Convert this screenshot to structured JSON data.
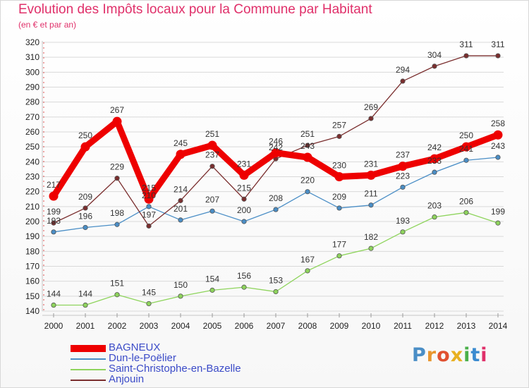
{
  "header": {
    "title": "Evolution des Impôts locaux pour la Commune par Habitant",
    "subtitle": "(en € et par an)"
  },
  "logo_text": "Proxiti",
  "chart_data": {
    "type": "line",
    "title": "Evolution des Impôts locaux pour la Commune par Habitant",
    "subtitle": "(en € et par an)",
    "xlabel": "",
    "ylabel": "",
    "x": [
      2000,
      2001,
      2002,
      2003,
      2004,
      2005,
      2006,
      2007,
      2008,
      2009,
      2010,
      2011,
      2012,
      2013,
      2014
    ],
    "ylim": [
      140,
      320
    ],
    "yticks": [
      140,
      150,
      160,
      170,
      180,
      190,
      200,
      210,
      220,
      230,
      240,
      250,
      260,
      270,
      280,
      290,
      300,
      310,
      320
    ],
    "grid": "horizontal",
    "legend_position": "bottom-left",
    "series": [
      {
        "name": "BAGNEUX",
        "color": "#ee0000",
        "values": [
          217,
          250,
          267,
          215,
          245,
          251,
          231,
          246,
          243,
          230,
          231,
          237,
          242,
          250,
          258
        ],
        "labels": [
          "217",
          "250",
          "267",
          "215",
          "245",
          "251",
          "231",
          "246",
          "243",
          "230",
          "231",
          "237",
          "242",
          "250",
          "258"
        ]
      },
      {
        "name": "Dun-le-Poëlier",
        "color": "#4a8ec6",
        "values": [
          193,
          196,
          198,
          210,
          201,
          207,
          200,
          208,
          220,
          209,
          211,
          223,
          233,
          241,
          243
        ],
        "labels": [
          "193",
          "196",
          "198",
          "210",
          "201",
          "207",
          "200",
          "208",
          "220",
          "209",
          "211",
          "223",
          "233",
          "241",
          "243"
        ]
      },
      {
        "name": "Saint-Christophe-en-Bazelle",
        "color": "#8ed45c",
        "values": [
          144,
          144,
          151,
          145,
          150,
          154,
          156,
          153,
          167,
          177,
          182,
          193,
          203,
          206,
          199
        ],
        "labels": [
          "144",
          "144",
          "151",
          "145",
          "150",
          "154",
          "156",
          "153",
          "167",
          "177",
          "182",
          "193",
          "203",
          "206",
          "199"
        ]
      },
      {
        "name": "Anjouin",
        "color": "#7a2e2e",
        "values": [
          199,
          209,
          229,
          197,
          214,
          237,
          215,
          242,
          251,
          257,
          269,
          294,
          304,
          311,
          311
        ],
        "labels": [
          "199",
          "209",
          "229",
          "197",
          "214",
          "237",
          "215",
          "242",
          "251",
          "257",
          "269",
          "294",
          "304",
          "311",
          "311"
        ]
      }
    ]
  }
}
